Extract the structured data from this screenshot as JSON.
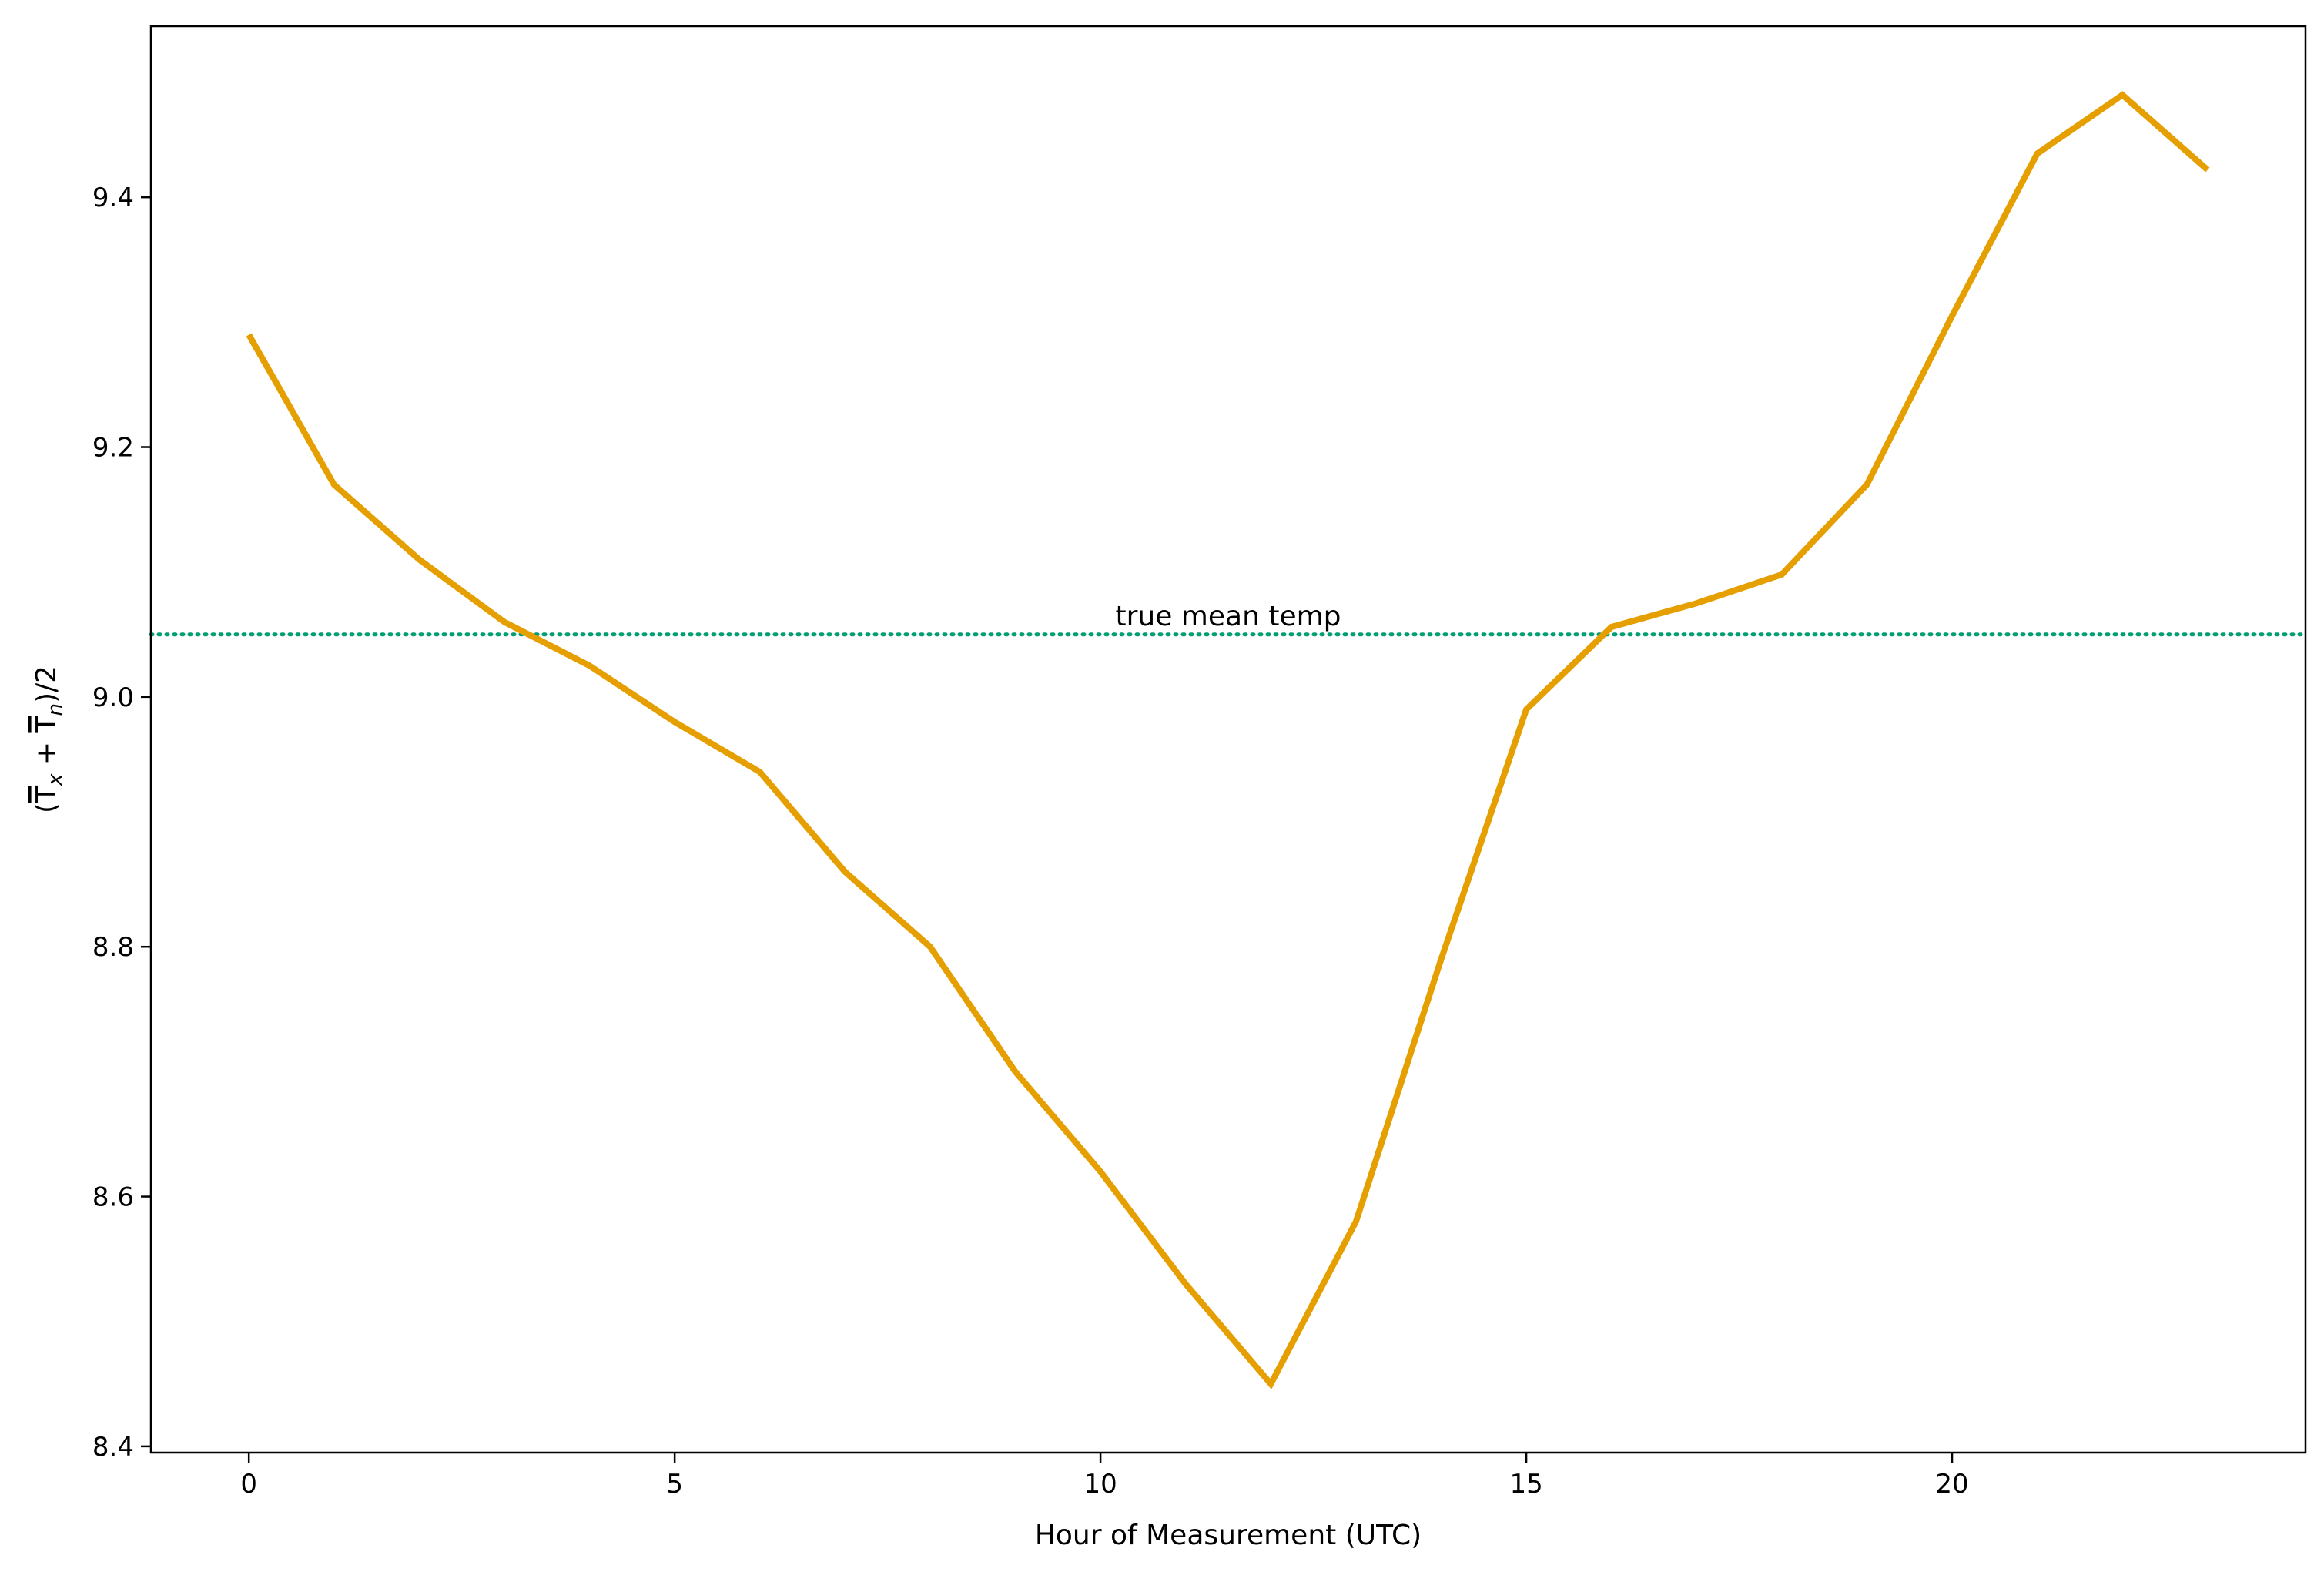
{
  "chart_data": {
    "type": "line",
    "title": "",
    "xlabel": "Hour of Measurement (UTC)",
    "ylabel": {
      "open": "(",
      "t1": "T",
      "s1": "x",
      "plus": " + ",
      "t2": "T",
      "s2": "n",
      "close": ")/2"
    },
    "xlim": [
      -1.15,
      24.15
    ],
    "ylim": [
      8.395,
      9.537
    ],
    "x_ticks": [
      0,
      5,
      10,
      15,
      20
    ],
    "x_tick_labels": [
      "0",
      "5",
      "10",
      "15",
      "20"
    ],
    "y_ticks": [
      8.4,
      8.6,
      8.8,
      9.0,
      9.2,
      9.4
    ],
    "y_tick_labels": [
      "8.4",
      "8.6",
      "8.8",
      "9.0",
      "9.2",
      "9.4"
    ],
    "grid": false,
    "series": [
      {
        "color": "#E69F00",
        "x": [
          0,
          1,
          2,
          3,
          4,
          5,
          6,
          7,
          8,
          9,
          10,
          11,
          12,
          13,
          14,
          15,
          16,
          17,
          18,
          19,
          20,
          21,
          22,
          23
        ],
        "values": [
          9.29,
          9.17,
          9.11,
          9.06,
          9.025,
          8.98,
          8.94,
          8.86,
          8.8,
          8.7,
          8.62,
          8.53,
          8.45,
          8.58,
          8.79,
          8.99,
          9.056,
          9.075,
          9.098,
          9.17,
          9.305,
          9.435,
          9.482,
          9.422
        ]
      }
    ],
    "reference_line": {
      "y": 9.05,
      "label": "true mean temp",
      "label_x": 11.5,
      "color": "#009E73",
      "style": "dotted"
    }
  }
}
